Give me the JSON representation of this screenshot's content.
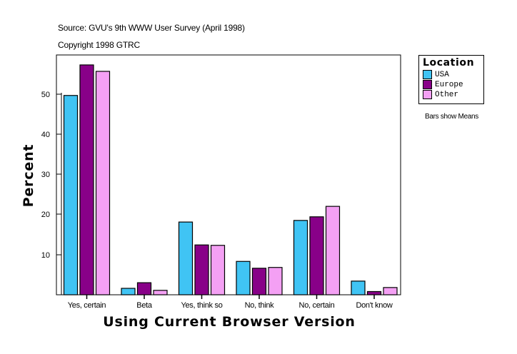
{
  "header": {
    "source": "Source: GVU's 9th WWW User Survey (April 1998)",
    "copyright": "Copyright 1998 GTRC"
  },
  "legend": {
    "title": "Location",
    "items": [
      {
        "label": "USA",
        "color": "#40c4f4"
      },
      {
        "label": "Europe",
        "color": "#880088"
      },
      {
        "label": "Other",
        "color": "#f4a0f4"
      }
    ]
  },
  "note": "Bars show Means",
  "chart_data": {
    "type": "bar",
    "title": "",
    "xlabel": "Using Current Browser Version",
    "ylabel": "Percent",
    "categories": [
      "Yes, certain",
      "Beta",
      "Yes, think so",
      "No, think",
      "No, certain",
      "Don't know"
    ],
    "series": [
      {
        "name": "USA",
        "color": "#40c4f4",
        "values": [
          49.6,
          1.6,
          18.1,
          8.3,
          18.5,
          3.4
        ]
      },
      {
        "name": "Europe",
        "color": "#880088",
        "values": [
          57.2,
          3.0,
          12.4,
          6.6,
          19.4,
          0.8
        ]
      },
      {
        "name": "Other",
        "color": "#f4a0f4",
        "values": [
          55.6,
          1.1,
          12.3,
          6.8,
          22.0,
          1.8
        ]
      }
    ],
    "yticks": [
      10,
      20,
      30,
      40,
      50
    ],
    "ylim": [
      0,
      58.7
    ],
    "grid": false,
    "legend_position": "right"
  }
}
